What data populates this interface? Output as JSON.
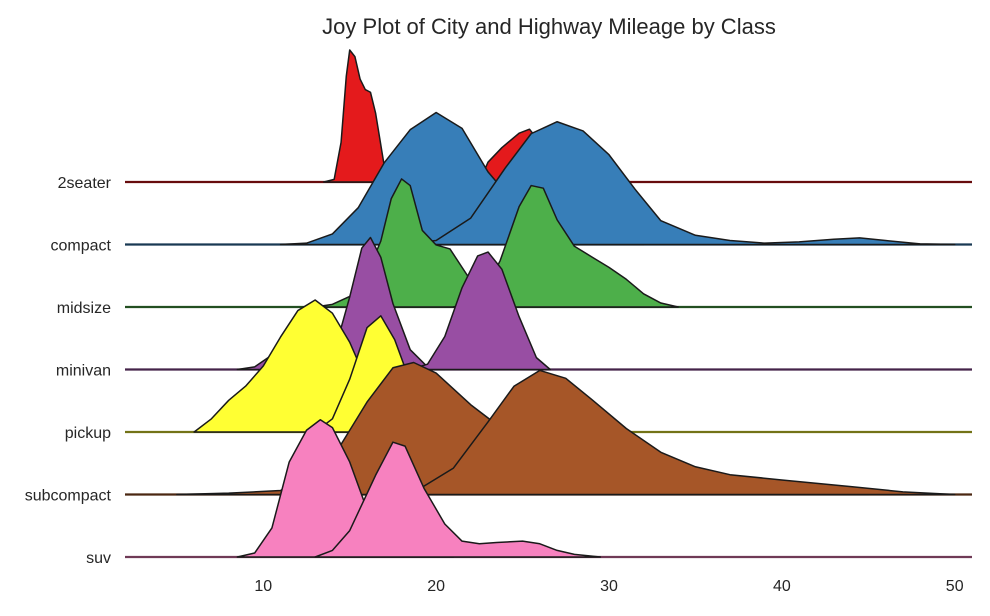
{
  "chart_data": {
    "type": "area",
    "title": "Joy Plot of City and Highway Mileage by Class",
    "xlabel": "",
    "ylabel": "",
    "xlim": [
      2,
      51
    ],
    "x_ticks": [
      10,
      20,
      30,
      40,
      50
    ],
    "grid": false,
    "legend": "none",
    "categories": [
      "2seater",
      "compact",
      "midsize",
      "minivan",
      "pickup",
      "subcompact",
      "suv"
    ],
    "series": [
      {
        "category": "2seater",
        "color": "#e41a1c",
        "kind": "city",
        "density": [
          [
            13.5,
            0
          ],
          [
            14.1,
            0.02
          ],
          [
            14.5,
            0.3
          ],
          [
            14.8,
            0.8
          ],
          [
            15.0,
            1.0
          ],
          [
            15.3,
            0.95
          ],
          [
            15.6,
            0.78
          ],
          [
            15.9,
            0.7
          ],
          [
            16.2,
            0.68
          ],
          [
            16.5,
            0.52
          ],
          [
            17.0,
            0.12
          ],
          [
            17.3,
            0
          ]
        ]
      },
      {
        "category": "2seater",
        "color": "#e41a1c",
        "kind": "highway",
        "density": [
          [
            22.5,
            0
          ],
          [
            23.0,
            0.15
          ],
          [
            23.8,
            0.26
          ],
          [
            24.8,
            0.37
          ],
          [
            25.4,
            0.4
          ],
          [
            26.0,
            0.3
          ],
          [
            26.6,
            0.15
          ],
          [
            27.2,
            0
          ]
        ]
      },
      {
        "category": "compact",
        "color": "#377eb8",
        "kind": "city",
        "density": [
          [
            11.0,
            0
          ],
          [
            12.5,
            0.01
          ],
          [
            14.0,
            0.08
          ],
          [
            15.5,
            0.28
          ],
          [
            17.0,
            0.62
          ],
          [
            18.5,
            0.87
          ],
          [
            20.0,
            1.0
          ],
          [
            21.5,
            0.88
          ],
          [
            23.0,
            0.55
          ],
          [
            24.5,
            0.32
          ],
          [
            26.0,
            0.19
          ],
          [
            28.0,
            0.09
          ],
          [
            30.0,
            0.03
          ],
          [
            32.0,
            0
          ]
        ]
      },
      {
        "category": "compact",
        "color": "#377eb8",
        "kind": "highway",
        "density": [
          [
            18.0,
            0
          ],
          [
            20.0,
            0.03
          ],
          [
            22.0,
            0.2
          ],
          [
            24.0,
            0.58
          ],
          [
            25.5,
            0.84
          ],
          [
            27.0,
            0.93
          ],
          [
            28.5,
            0.86
          ],
          [
            30.0,
            0.68
          ],
          [
            31.5,
            0.42
          ],
          [
            33.0,
            0.18
          ],
          [
            35.0,
            0.07
          ],
          [
            37.0,
            0.03
          ],
          [
            39.0,
            0.01
          ],
          [
            41.0,
            0.02
          ],
          [
            43.0,
            0.04
          ],
          [
            44.5,
            0.05
          ],
          [
            46.0,
            0.03
          ],
          [
            48.0,
            0.005
          ],
          [
            50.0,
            0
          ]
        ]
      },
      {
        "category": "midsize",
        "color": "#4daf4a",
        "kind": "city",
        "density": [
          [
            13.0,
            0
          ],
          [
            14.0,
            0.02
          ],
          [
            15.0,
            0.08
          ],
          [
            16.0,
            0.25
          ],
          [
            16.8,
            0.5
          ],
          [
            17.4,
            0.82
          ],
          [
            18.0,
            0.97
          ],
          [
            18.5,
            0.92
          ],
          [
            19.2,
            0.58
          ],
          [
            20.0,
            0.47
          ],
          [
            20.8,
            0.44
          ],
          [
            21.5,
            0.3
          ],
          [
            22.5,
            0.1
          ],
          [
            23.5,
            0
          ]
        ]
      },
      {
        "category": "midsize",
        "color": "#4daf4a",
        "kind": "highway",
        "density": [
          [
            21.0,
            0
          ],
          [
            22.5,
            0.05
          ],
          [
            23.7,
            0.35
          ],
          [
            24.8,
            0.76
          ],
          [
            25.5,
            0.92
          ],
          [
            26.2,
            0.9
          ],
          [
            27.0,
            0.66
          ],
          [
            28.0,
            0.46
          ],
          [
            29.0,
            0.38
          ],
          [
            30.0,
            0.3
          ],
          [
            31.0,
            0.21
          ],
          [
            32.0,
            0.1
          ],
          [
            33.0,
            0.03
          ],
          [
            34.0,
            0
          ]
        ]
      },
      {
        "category": "minivan",
        "color": "#984ea3",
        "kind": "city",
        "density": [
          [
            8.5,
            0
          ],
          [
            9.5,
            0.02
          ],
          [
            10.5,
            0.11
          ],
          [
            11.3,
            0.14
          ],
          [
            11.8,
            0.1
          ],
          [
            12.5,
            0.05
          ],
          [
            13.2,
            0.04
          ],
          [
            14.0,
            0.08
          ],
          [
            15.0,
            0.55
          ],
          [
            15.7,
            0.92
          ],
          [
            16.2,
            1.0
          ],
          [
            16.8,
            0.85
          ],
          [
            17.5,
            0.5
          ],
          [
            18.5,
            0.15
          ],
          [
            19.5,
            0.02
          ],
          [
            20.5,
            0
          ]
        ]
      },
      {
        "category": "minivan",
        "color": "#984ea3",
        "kind": "highway",
        "density": [
          [
            18.5,
            0
          ],
          [
            19.5,
            0.04
          ],
          [
            20.5,
            0.25
          ],
          [
            21.5,
            0.62
          ],
          [
            22.4,
            0.86
          ],
          [
            23.0,
            0.89
          ],
          [
            23.8,
            0.76
          ],
          [
            24.8,
            0.4
          ],
          [
            25.8,
            0.09
          ],
          [
            26.6,
            0
          ]
        ]
      },
      {
        "category": "pickup",
        "color": "#ffff33",
        "kind": "city",
        "density": [
          [
            6.0,
            0
          ],
          [
            7.0,
            0.1
          ],
          [
            8.0,
            0.24
          ],
          [
            9.0,
            0.35
          ],
          [
            10.0,
            0.5
          ],
          [
            11.0,
            0.72
          ],
          [
            12.0,
            0.92
          ],
          [
            13.0,
            1.0
          ],
          [
            14.0,
            0.9
          ],
          [
            15.0,
            0.68
          ],
          [
            16.0,
            0.38
          ],
          [
            17.0,
            0.1
          ],
          [
            17.5,
            0
          ]
        ]
      },
      {
        "category": "pickup",
        "color": "#ffff33",
        "kind": "highway",
        "density": [
          [
            13.0,
            0
          ],
          [
            14.0,
            0.1
          ],
          [
            15.0,
            0.4
          ],
          [
            16.0,
            0.79
          ],
          [
            16.8,
            0.88
          ],
          [
            17.6,
            0.7
          ],
          [
            18.5,
            0.38
          ],
          [
            19.5,
            0.08
          ],
          [
            20.5,
            0
          ]
        ]
      },
      {
        "category": "subcompact",
        "color": "#a65628",
        "kind": "city",
        "density": [
          [
            5.0,
            0
          ],
          [
            8.0,
            0.01
          ],
          [
            11.0,
            0.03
          ],
          [
            13.0,
            0.2
          ],
          [
            14.5,
            0.38
          ],
          [
            16.0,
            0.7
          ],
          [
            17.5,
            0.96
          ],
          [
            18.7,
            1.0
          ],
          [
            20.0,
            0.92
          ],
          [
            22.0,
            0.68
          ],
          [
            24.0,
            0.48
          ],
          [
            26.0,
            0.33
          ],
          [
            28.0,
            0.18
          ],
          [
            30.0,
            0.07
          ],
          [
            32.0,
            0.02
          ],
          [
            35.0,
            0.01
          ],
          [
            38.0,
            0.005
          ],
          [
            45.0,
            0
          ]
        ]
      },
      {
        "category": "subcompact",
        "color": "#a65628",
        "kind": "highway",
        "density": [
          [
            17.0,
            0
          ],
          [
            19.0,
            0.04
          ],
          [
            21.0,
            0.2
          ],
          [
            23.0,
            0.55
          ],
          [
            24.5,
            0.82
          ],
          [
            26.0,
            0.94
          ],
          [
            27.5,
            0.88
          ],
          [
            29.0,
            0.72
          ],
          [
            31.0,
            0.5
          ],
          [
            33.0,
            0.32
          ],
          [
            35.0,
            0.21
          ],
          [
            37.0,
            0.15
          ],
          [
            40.0,
            0.11
          ],
          [
            44.0,
            0.06
          ],
          [
            47.0,
            0.02
          ],
          [
            50.0,
            0
          ]
        ]
      },
      {
        "category": "suv",
        "color": "#f781bf",
        "kind": "city",
        "density": [
          [
            8.5,
            0
          ],
          [
            9.5,
            0.03
          ],
          [
            10.5,
            0.22
          ],
          [
            11.5,
            0.72
          ],
          [
            12.5,
            0.96
          ],
          [
            13.3,
            1.04
          ],
          [
            14.0,
            0.98
          ],
          [
            15.0,
            0.72
          ],
          [
            16.0,
            0.36
          ],
          [
            17.0,
            0.18
          ],
          [
            18.0,
            0.1
          ],
          [
            19.0,
            0.05
          ],
          [
            20.0,
            0.02
          ],
          [
            21.0,
            0
          ]
        ]
      },
      {
        "category": "suv",
        "color": "#f781bf",
        "kind": "highway",
        "density": [
          [
            13.0,
            0
          ],
          [
            14.0,
            0.05
          ],
          [
            15.0,
            0.2
          ],
          [
            16.5,
            0.62
          ],
          [
            17.5,
            0.87
          ],
          [
            18.2,
            0.84
          ],
          [
            19.3,
            0.52
          ],
          [
            20.5,
            0.25
          ],
          [
            21.5,
            0.12
          ],
          [
            22.5,
            0.1
          ],
          [
            23.5,
            0.11
          ],
          [
            25.0,
            0.12
          ],
          [
            26.0,
            0.1
          ],
          [
            27.0,
            0.05
          ],
          [
            28.0,
            0.02
          ],
          [
            29.5,
            0
          ]
        ]
      }
    ]
  }
}
